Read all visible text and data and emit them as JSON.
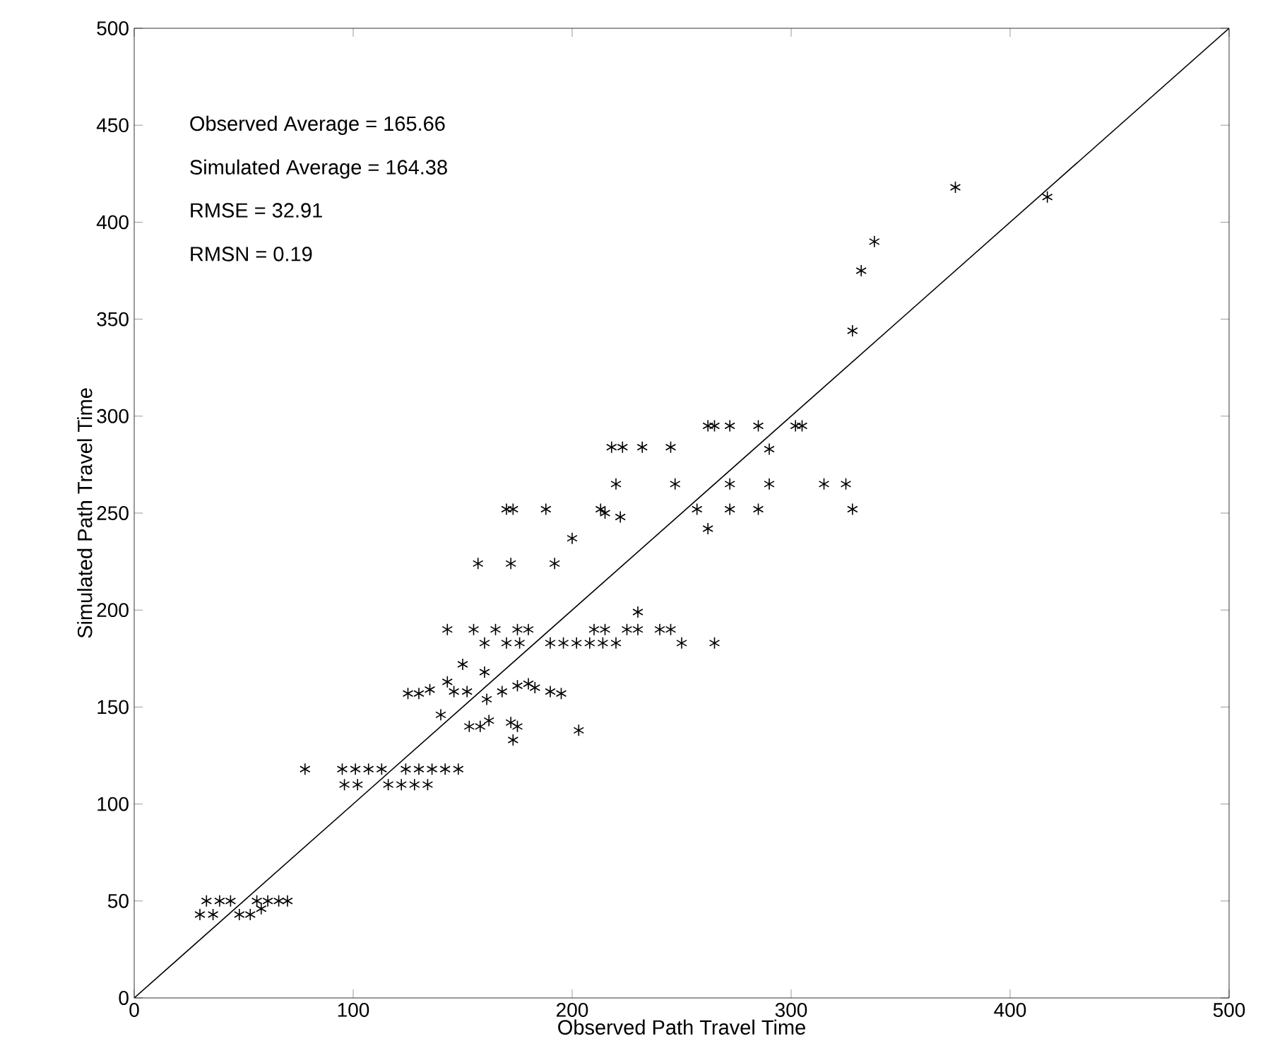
{
  "chart_data": {
    "type": "scatter",
    "xlabel": "Observed Path Travel Time",
    "ylabel": "Simulated Path Travel Time",
    "annotations": [
      "Observed Average = 165.66",
      "Simulated Average  = 164.38",
      "RMSE = 32.91",
      "RMSN = 0.19"
    ],
    "xlim": [
      0,
      500
    ],
    "ylim": [
      0,
      500
    ],
    "xticks": [
      0,
      100,
      200,
      300,
      400,
      500
    ],
    "yticks": [
      0,
      50,
      100,
      150,
      200,
      250,
      300,
      350,
      400,
      450,
      500
    ],
    "grid": false,
    "marker": "cross",
    "series": [
      {
        "type": "line",
        "color": "#000000",
        "marker": "none",
        "x": [
          0,
          500
        ],
        "values": [
          0,
          500
        ]
      },
      {
        "color": "#000000",
        "x": [
          30,
          36,
          48,
          53,
          33,
          39,
          44,
          56,
          61,
          66,
          70,
          58,
          78,
          95,
          101,
          107,
          113,
          124,
          130,
          136,
          142,
          148,
          96,
          102,
          116,
          122,
          128,
          134,
          143,
          155,
          165,
          175,
          180,
          210,
          215,
          225,
          230,
          240,
          245,
          160,
          170,
          176,
          190,
          196,
          202,
          208,
          214,
          220,
          250,
          265,
          230,
          150,
          143,
          146,
          152,
          161,
          160,
          168,
          175,
          180,
          190,
          195,
          140,
          153,
          158,
          162,
          172,
          175,
          173,
          203,
          183,
          125,
          130,
          135,
          218,
          223,
          232,
          245,
          262,
          265,
          272,
          285,
          302,
          305,
          220,
          247,
          272,
          290,
          315,
          325,
          170,
          173,
          188,
          213,
          257,
          272,
          285,
          328,
          215,
          222,
          200,
          290,
          262,
          157,
          172,
          192,
          328,
          332,
          338,
          375,
          417
        ],
        "values": [
          43,
          43,
          43,
          43,
          50,
          50,
          50,
          50,
          50,
          50,
          50,
          46,
          118,
          118,
          118,
          118,
          118,
          118,
          118,
          118,
          118,
          118,
          110,
          110,
          110,
          110,
          110,
          110,
          190,
          190,
          190,
          190,
          190,
          190,
          190,
          190,
          190,
          190,
          190,
          183,
          183,
          183,
          183,
          183,
          183,
          183,
          183,
          183,
          183,
          183,
          199,
          172,
          163,
          158,
          158,
          154,
          168,
          158,
          161,
          162,
          158,
          157,
          146,
          140,
          140,
          143,
          142,
          140,
          133,
          138,
          160,
          157,
          157,
          159,
          284,
          284,
          284,
          284,
          295,
          295,
          295,
          295,
          295,
          295,
          265,
          265,
          265,
          265,
          265,
          265,
          252,
          252,
          252,
          252,
          252,
          252,
          252,
          252,
          250,
          248,
          237,
          283,
          242,
          224,
          224,
          224,
          344,
          375,
          390,
          418,
          413
        ]
      }
    ]
  }
}
